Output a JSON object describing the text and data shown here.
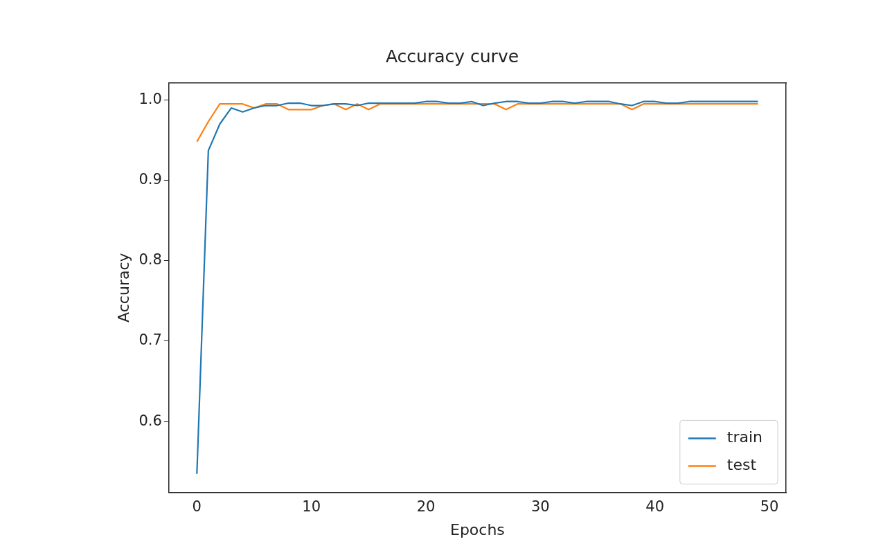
{
  "chart_data": {
    "type": "line",
    "title": "Accuracy curve",
    "xlabel": "Epochs",
    "ylabel": "Accuracy",
    "x": [
      0,
      1,
      2,
      3,
      4,
      5,
      6,
      7,
      8,
      9,
      10,
      11,
      12,
      13,
      14,
      15,
      16,
      17,
      18,
      19,
      20,
      21,
      22,
      23,
      24,
      25,
      26,
      27,
      28,
      29,
      30,
      31,
      32,
      33,
      34,
      35,
      36,
      37,
      38,
      39,
      40,
      41,
      42,
      43,
      44,
      45,
      46,
      47,
      48,
      49
    ],
    "series": [
      {
        "name": "train",
        "color": "#1f77b4",
        "values": [
          0.535,
          0.937,
          0.97,
          0.99,
          0.985,
          0.99,
          0.993,
          0.993,
          0.996,
          0.996,
          0.993,
          0.993,
          0.995,
          0.995,
          0.993,
          0.996,
          0.996,
          0.996,
          0.996,
          0.996,
          0.998,
          0.998,
          0.996,
          0.996,
          0.998,
          0.993,
          0.996,
          0.998,
          0.998,
          0.996,
          0.996,
          0.998,
          0.998,
          0.996,
          0.998,
          0.998,
          0.998,
          0.995,
          0.993,
          0.998,
          0.998,
          0.996,
          0.996,
          0.998,
          0.998,
          0.998,
          0.998,
          0.998,
          0.998,
          0.998
        ]
      },
      {
        "name": "test",
        "color": "#ff7f0e",
        "values": [
          0.948,
          0.973,
          0.995,
          0.995,
          0.995,
          0.99,
          0.995,
          0.995,
          0.988,
          0.988,
          0.988,
          0.993,
          0.995,
          0.988,
          0.995,
          0.988,
          0.995,
          0.995,
          0.995,
          0.995,
          0.995,
          0.995,
          0.995,
          0.995,
          0.995,
          0.995,
          0.995,
          0.988,
          0.995,
          0.995,
          0.995,
          0.995,
          0.995,
          0.995,
          0.995,
          0.995,
          0.995,
          0.995,
          0.988,
          0.995,
          0.995,
          0.995,
          0.995,
          0.995,
          0.995,
          0.995,
          0.995,
          0.995,
          0.995,
          0.995
        ]
      }
    ],
    "xlim": [
      -2.45,
      51.45
    ],
    "xticks": [
      0,
      10,
      20,
      30,
      40,
      50
    ],
    "ylim": [
      0.512,
      1.021
    ],
    "yticks": [
      {
        "value": 0.6,
        "label": "0.6"
      },
      {
        "value": 0.7,
        "label": "0.7"
      },
      {
        "value": 0.8,
        "label": "0.8"
      },
      {
        "value": 0.9,
        "label": "0.9"
      },
      {
        "value": 1.0,
        "label": "1.0"
      }
    ],
    "legend": "bottom right",
    "grid": false,
    "marker": "none",
    "line_style": "solid"
  }
}
